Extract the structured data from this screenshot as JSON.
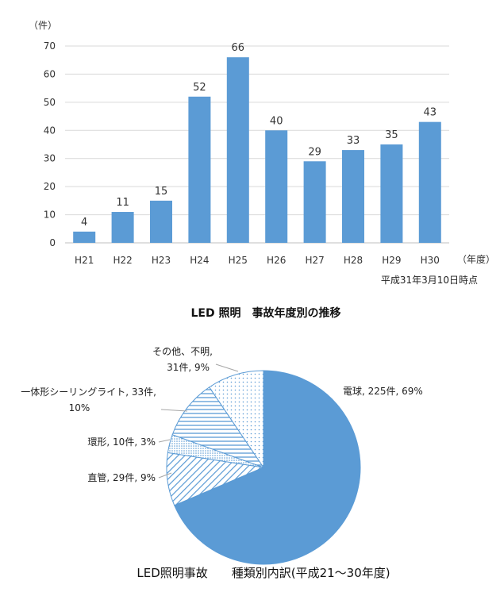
{
  "chart_data": [
    {
      "type": "bar",
      "title": "LED 照明　事故年度別の推移",
      "y_unit": "（件）",
      "x_unit": "（年度）",
      "note": "平成31年3月10日時点",
      "categories": [
        "H21",
        "H22",
        "H23",
        "H24",
        "H25",
        "H26",
        "H27",
        "H28",
        "H29",
        "H30"
      ],
      "values": [
        4,
        11,
        15,
        52,
        66,
        40,
        29,
        33,
        35,
        43
      ],
      "ylim": [
        0,
        70
      ],
      "yticks": [
        "0",
        "10",
        "20",
        "30",
        "40",
        "50",
        "60",
        "70"
      ],
      "grid": true,
      "color": "#5b9bd5"
    },
    {
      "type": "pie",
      "title": "LED照明事故　　種類別内訳(平成21～30年度)",
      "slices": [
        {
          "label_lines": [
            "電球, 225件, 69%"
          ],
          "value": 225,
          "percent": 69,
          "pattern": "solid"
        },
        {
          "label_lines": [
            "直管, 29件, 9%"
          ],
          "value": 29,
          "percent": 9,
          "pattern": "diagonal"
        },
        {
          "label_lines": [
            "環形, 10件, 3%"
          ],
          "value": 10,
          "percent": 3,
          "pattern": "dots-dense"
        },
        {
          "label_lines": [
            "一体形シーリングライト, 33件,",
            "10%"
          ],
          "value": 33,
          "percent": 10,
          "pattern": "horizontal"
        },
        {
          "label_lines": [
            "その他、不明,",
            "31件, 9%"
          ],
          "value": 31,
          "percent": 9,
          "pattern": "dots"
        }
      ],
      "color": "#5b9bd5"
    }
  ]
}
